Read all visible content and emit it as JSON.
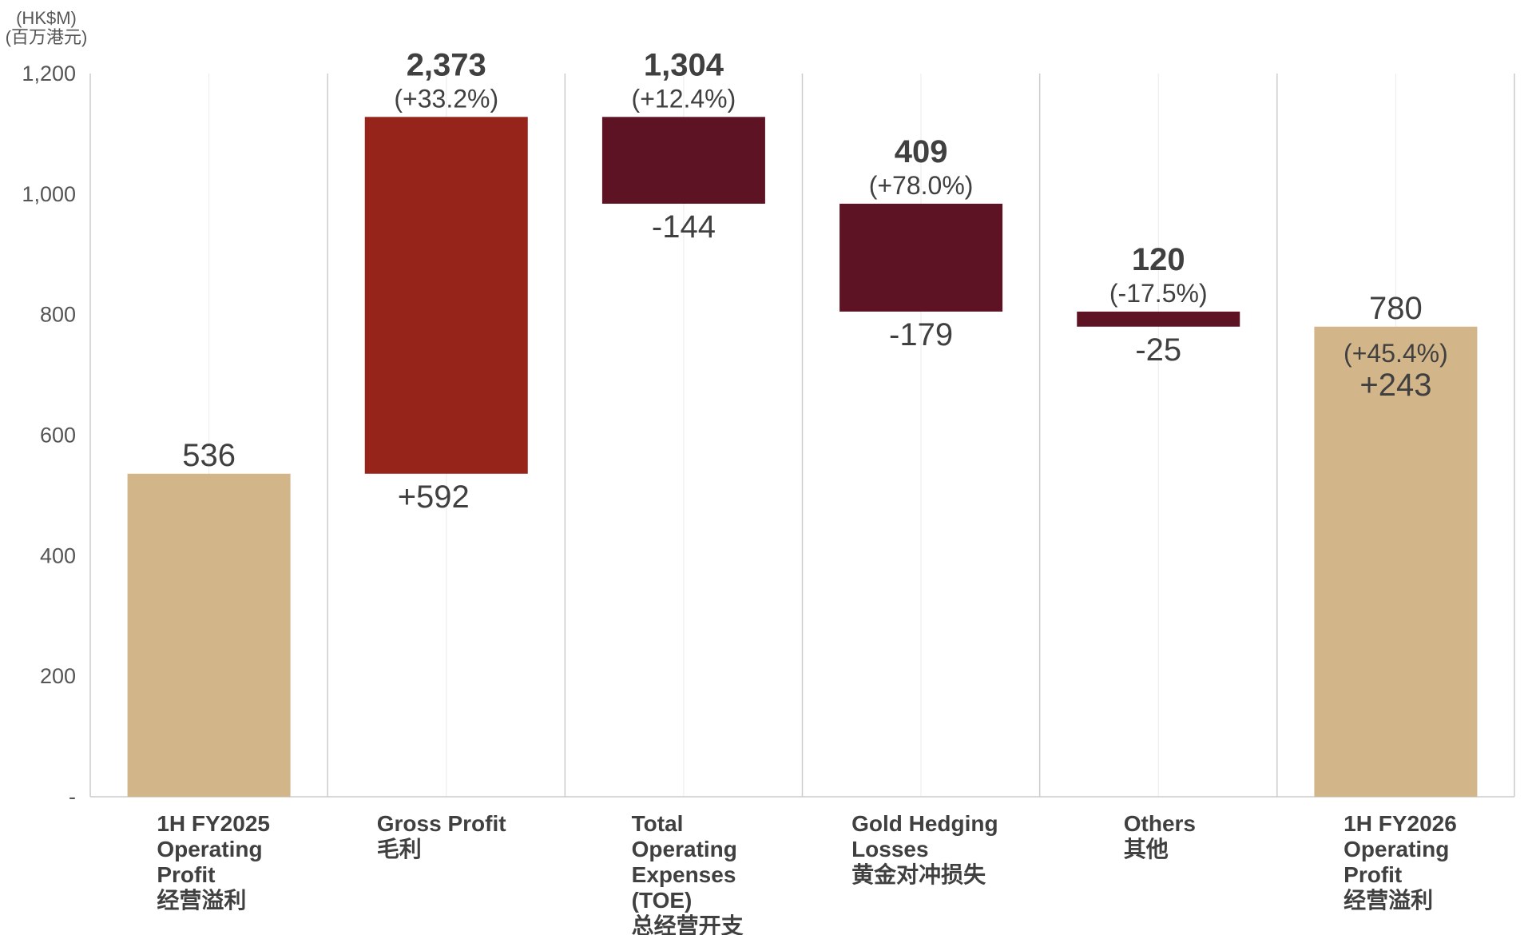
{
  "chart_data": {
    "type": "bar",
    "variant": "waterfall",
    "unit_label": [
      "(HK$M)",
      "(百万港元)"
    ],
    "ylim": [
      0,
      1200
    ],
    "yticks": [
      {
        "value": 0,
        "label": "-"
      },
      {
        "value": 200,
        "label": "200"
      },
      {
        "value": 400,
        "label": "400"
      },
      {
        "value": 600,
        "label": "600"
      },
      {
        "value": 800,
        "label": "800"
      },
      {
        "value": 1000,
        "label": "1,000"
      },
      {
        "value": 1200,
        "label": "1,200"
      }
    ],
    "grid": true,
    "colors": {
      "total": "#D3B58A",
      "increase": "#96241A",
      "decrease": "#5E1324",
      "grid": "#DDDDDD",
      "axis": "#CCCCCC"
    },
    "categories": [
      {
        "lines": [
          "1H FY2025",
          "Operating",
          "Profit",
          "经营溢利"
        ]
      },
      {
        "lines": [
          "Gross Profit",
          "毛利"
        ]
      },
      {
        "lines": [
          "Total",
          "Operating",
          "Expenses",
          "(TOE)",
          "总经营开支"
        ]
      },
      {
        "lines": [
          "Gold Hedging",
          "Losses",
          "黄金对冲损失"
        ]
      },
      {
        "lines": [
          "Others",
          "其他"
        ]
      },
      {
        "lines": [
          "1H FY2026",
          "Operating",
          "Profit",
          "经营溢利"
        ]
      }
    ],
    "bars": [
      {
        "kind": "total",
        "start": 0,
        "end": 536,
        "value_label": "536"
      },
      {
        "kind": "increase",
        "start": 536,
        "end": 1128,
        "value_label": "2,373",
        "pct_label": "(+33.2%)",
        "delta_label": "+592"
      },
      {
        "kind": "decrease",
        "start": 1128,
        "end": 984,
        "value_label": "1,304",
        "pct_label": "(+12.4%)",
        "delta_label": "-144"
      },
      {
        "kind": "decrease",
        "start": 984,
        "end": 805,
        "value_label": "409",
        "pct_label": "(+78.0%)",
        "delta_label": "-179"
      },
      {
        "kind": "decrease",
        "start": 805,
        "end": 780,
        "value_label": "120",
        "pct_label": "(-17.5%)",
        "delta_label": "-25"
      },
      {
        "kind": "total",
        "start": 0,
        "end": 780,
        "value_label": "780",
        "pct_label": "(+45.4%)",
        "delta_label": "+243"
      }
    ]
  }
}
